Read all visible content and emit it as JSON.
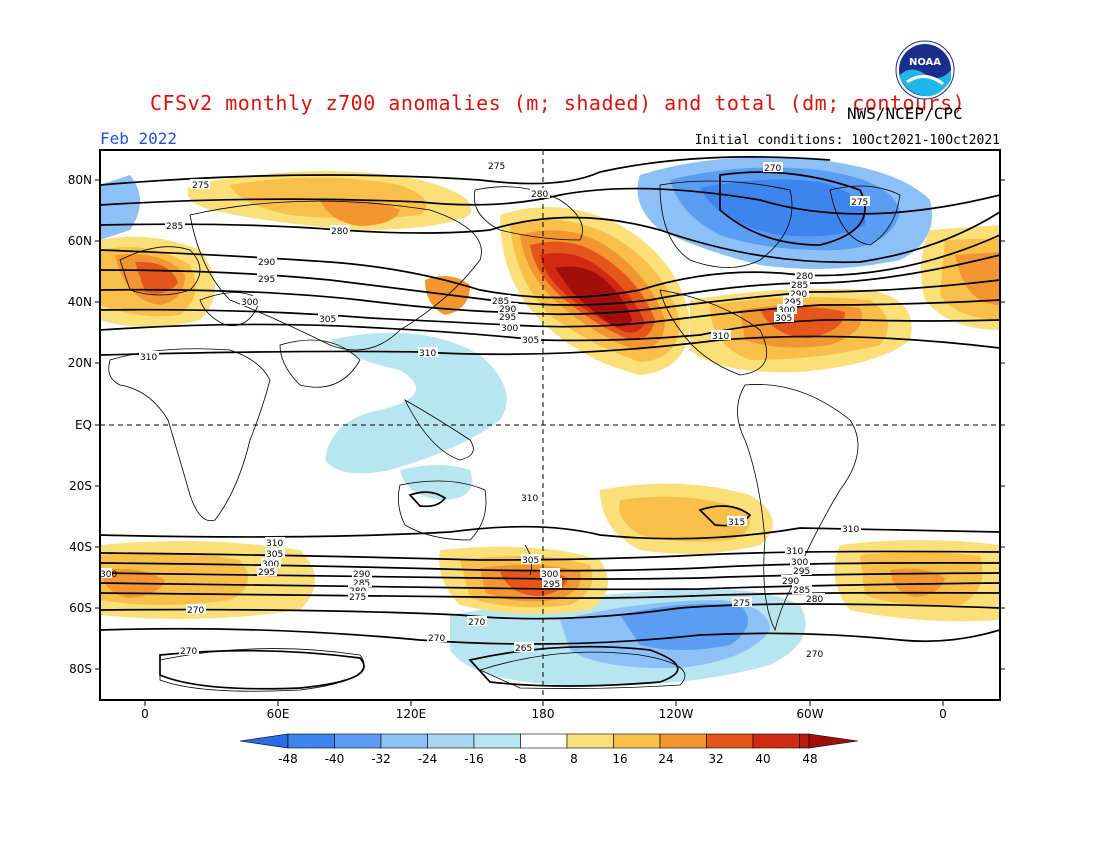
{
  "title": "CFSv2 monthly z700 anomalies (m; shaded) and total (dm; contours)",
  "org": "NWS/NCEP/CPC",
  "period": "Feb 2022",
  "init": "Initial conditions: 10Oct2021-10Oct2021",
  "logo_text": "NOAA",
  "lat_labels": [
    "80N",
    "60N",
    "40N",
    "20N",
    "EQ",
    "20S",
    "40S",
    "60S",
    "80S"
  ],
  "lon_labels": [
    "0",
    "60E",
    "120E",
    "180",
    "120W",
    "60W",
    "0"
  ],
  "colorbar": {
    "labels": [
      "-48",
      "-40",
      "-32",
      "-24",
      "-16",
      "-8",
      "8",
      "16",
      "24",
      "32",
      "40",
      "48"
    ],
    "colors": [
      "#2a6ce6",
      "#3d84ec",
      "#5b9df2",
      "#8cc0f6",
      "#b8e6f0",
      "#ffffff",
      "#fbe07a",
      "#f8c04a",
      "#f39530",
      "#e4561c",
      "#d02a12",
      "#a10f0a"
    ]
  },
  "contour_labels": {
    "north": [
      "275",
      "275",
      "280",
      "280",
      "270",
      "275",
      "285",
      "290",
      "295",
      "300",
      "305",
      "310",
      "310",
      "305",
      "300",
      "295",
      "290",
      "285",
      "280",
      "285",
      "290",
      "295",
      "300",
      "305",
      "310"
    ],
    "south": [
      "310",
      "315",
      "310",
      "310",
      "305",
      "300",
      "295",
      "290",
      "285",
      "280",
      "275",
      "270",
      "270",
      "270",
      "270",
      "265",
      "305",
      "300",
      "295",
      "290",
      "285",
      "280",
      "275",
      "270",
      "300"
    ]
  }
}
